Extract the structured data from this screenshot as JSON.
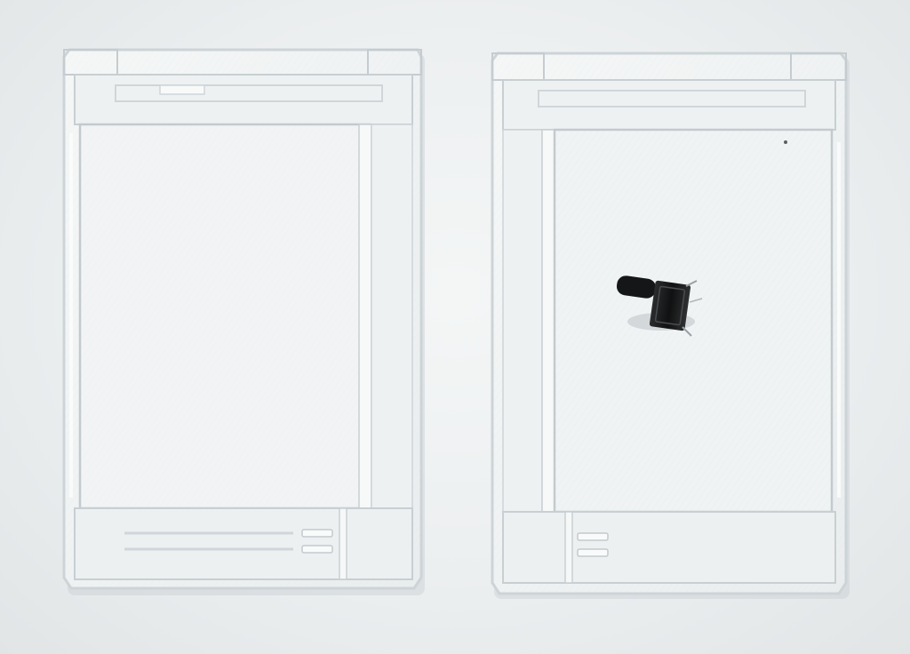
{
  "photo": {
    "background_color": "#eceff0",
    "objects": [
      {
        "name": "left-enclosure-half",
        "material": "clear-3d-printed-plastic"
      },
      {
        "name": "right-enclosure-half",
        "material": "clear-3d-printed-plastic"
      },
      {
        "name": "tactile-push-button",
        "color": "#151617"
      }
    ],
    "colors": {
      "plastic_edge": "#cdd4d7",
      "plastic_fill": "#eef1f2",
      "plastic_highlight": "#fbfcfc",
      "shadow": "#c9cfd2"
    }
  }
}
